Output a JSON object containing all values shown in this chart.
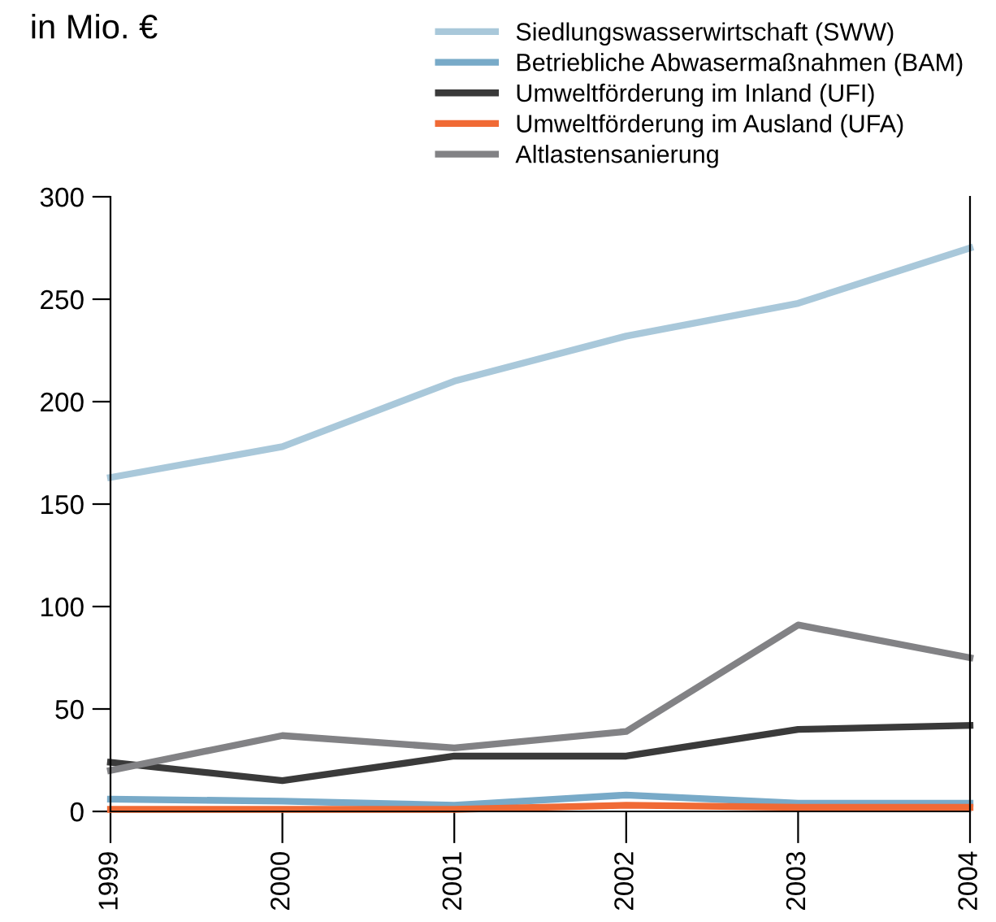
{
  "chart_data": {
    "type": "line",
    "ylabel": "in Mio. €",
    "x": [
      1999,
      2000,
      2001,
      2002,
      2003,
      2004
    ],
    "series": [
      {
        "name": "Siedlungswasserwirtschaft (SWW)",
        "color": "#a9c8da",
        "values": [
          163,
          178,
          210,
          232,
          248,
          275
        ]
      },
      {
        "name": "Betriebliche Abwasermaßnahmen (BAM)",
        "color": "#78aac8",
        "values": [
          6,
          5,
          3,
          8,
          4,
          4
        ]
      },
      {
        "name": "Umweltförderung im Inland (UFI)",
        "color": "#3a3a3a",
        "values": [
          24,
          15,
          27,
          27,
          40,
          42
        ]
      },
      {
        "name": "Umweltförderung im Ausland (UFA)",
        "color": "#f06a35",
        "values": [
          1,
          1,
          1,
          3,
          2,
          2
        ]
      },
      {
        "name": "Altlastensanierung",
        "color": "#828285",
        "values": [
          20,
          37,
          31,
          39,
          91,
          75
        ]
      }
    ],
    "xlim": [
      1999,
      2004
    ],
    "xticks": [
      1999,
      2000,
      2001,
      2002,
      2003,
      2004
    ],
    "ylim": [
      0,
      300
    ],
    "yticks": [
      0,
      50,
      100,
      150,
      200,
      250,
      300
    ],
    "grid": false,
    "legend": "top right",
    "marker": "none",
    "line_style": "solid"
  }
}
